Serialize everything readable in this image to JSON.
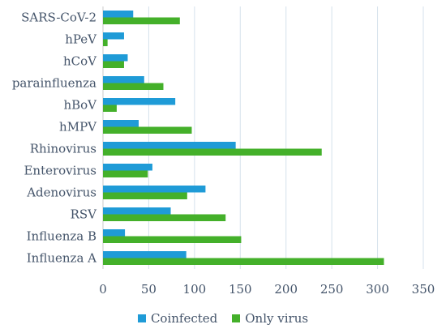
{
  "chart_data": {
    "type": "bar",
    "orientation": "horizontal",
    "categories": [
      "SARS-CoV-2",
      "hPeV",
      "hCoV",
      "parainfluenza",
      "hBoV",
      "hMPV",
      "Rhinovirus",
      "Enterovirus",
      "Adenovirus",
      "RSV",
      "Influenza B",
      "Influenza A"
    ],
    "series": [
      {
        "name": "Coinfected",
        "color": "#1f9bd7",
        "values": [
          33,
          23,
          27,
          45,
          79,
          39,
          145,
          54,
          112,
          74,
          24,
          91
        ]
      },
      {
        "name": "Only virus",
        "color": "#44b02a",
        "values": [
          84,
          5,
          23,
          66,
          15,
          97,
          239,
          49,
          92,
          134,
          151,
          307
        ]
      }
    ],
    "xlim": [
      0,
      350
    ],
    "xticks": [
      "0",
      "50",
      "100",
      "150",
      "200",
      "250",
      "300",
      "350"
    ],
    "grid": true,
    "legend_position": "bottom"
  }
}
